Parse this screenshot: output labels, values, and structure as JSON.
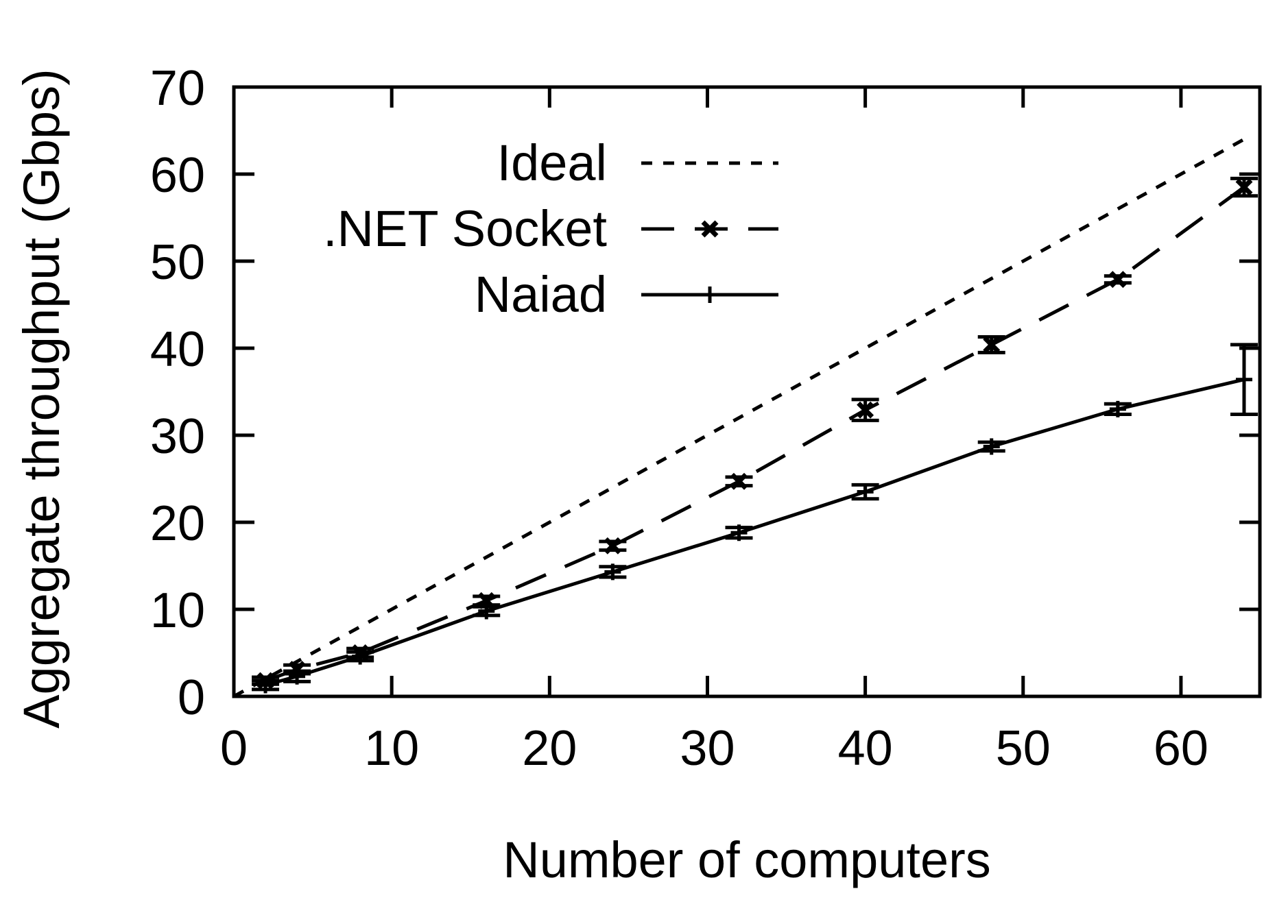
{
  "chart_data": {
    "type": "line",
    "xlabel": "Number of computers",
    "ylabel": "Aggregate throughput (Gbps)",
    "xlim": [
      0,
      65
    ],
    "ylim": [
      0,
      70
    ],
    "xticks": [
      0,
      10,
      20,
      30,
      40,
      50,
      60
    ],
    "yticks": [
      0,
      10,
      20,
      30,
      40,
      50,
      60,
      70
    ],
    "grid": false,
    "legend_position": "top-left",
    "series": [
      {
        "name": "Ideal",
        "style": "dotted",
        "color": "#000000",
        "x": [
          0,
          64
        ],
        "y": [
          0,
          64
        ]
      },
      {
        "name": ".NET Socket",
        "style": "dashed",
        "marker": "x",
        "color": "#000000",
        "x": [
          2,
          4,
          8,
          16,
          24,
          32,
          40,
          48,
          56,
          64
        ],
        "y": [
          1.8,
          3.1,
          5.0,
          11.0,
          17.3,
          24.7,
          32.9,
          40.4,
          47.9,
          58.5
        ],
        "err": [
          0.4,
          0.5,
          0.5,
          0.5,
          0.5,
          0.5,
          1.2,
          0.9,
          0.4,
          1.0
        ]
      },
      {
        "name": "Naiad",
        "style": "solid",
        "marker": "+",
        "color": "#000000",
        "x": [
          2,
          4,
          8,
          16,
          24,
          32,
          40,
          48,
          56,
          64
        ],
        "y": [
          1.3,
          2.3,
          4.6,
          9.8,
          14.3,
          18.8,
          23.5,
          28.7,
          33.0,
          36.4
        ],
        "err": [
          0.5,
          0.6,
          0.5,
          0.5,
          0.6,
          0.6,
          0.8,
          0.5,
          0.6,
          4.0
        ]
      }
    ]
  }
}
